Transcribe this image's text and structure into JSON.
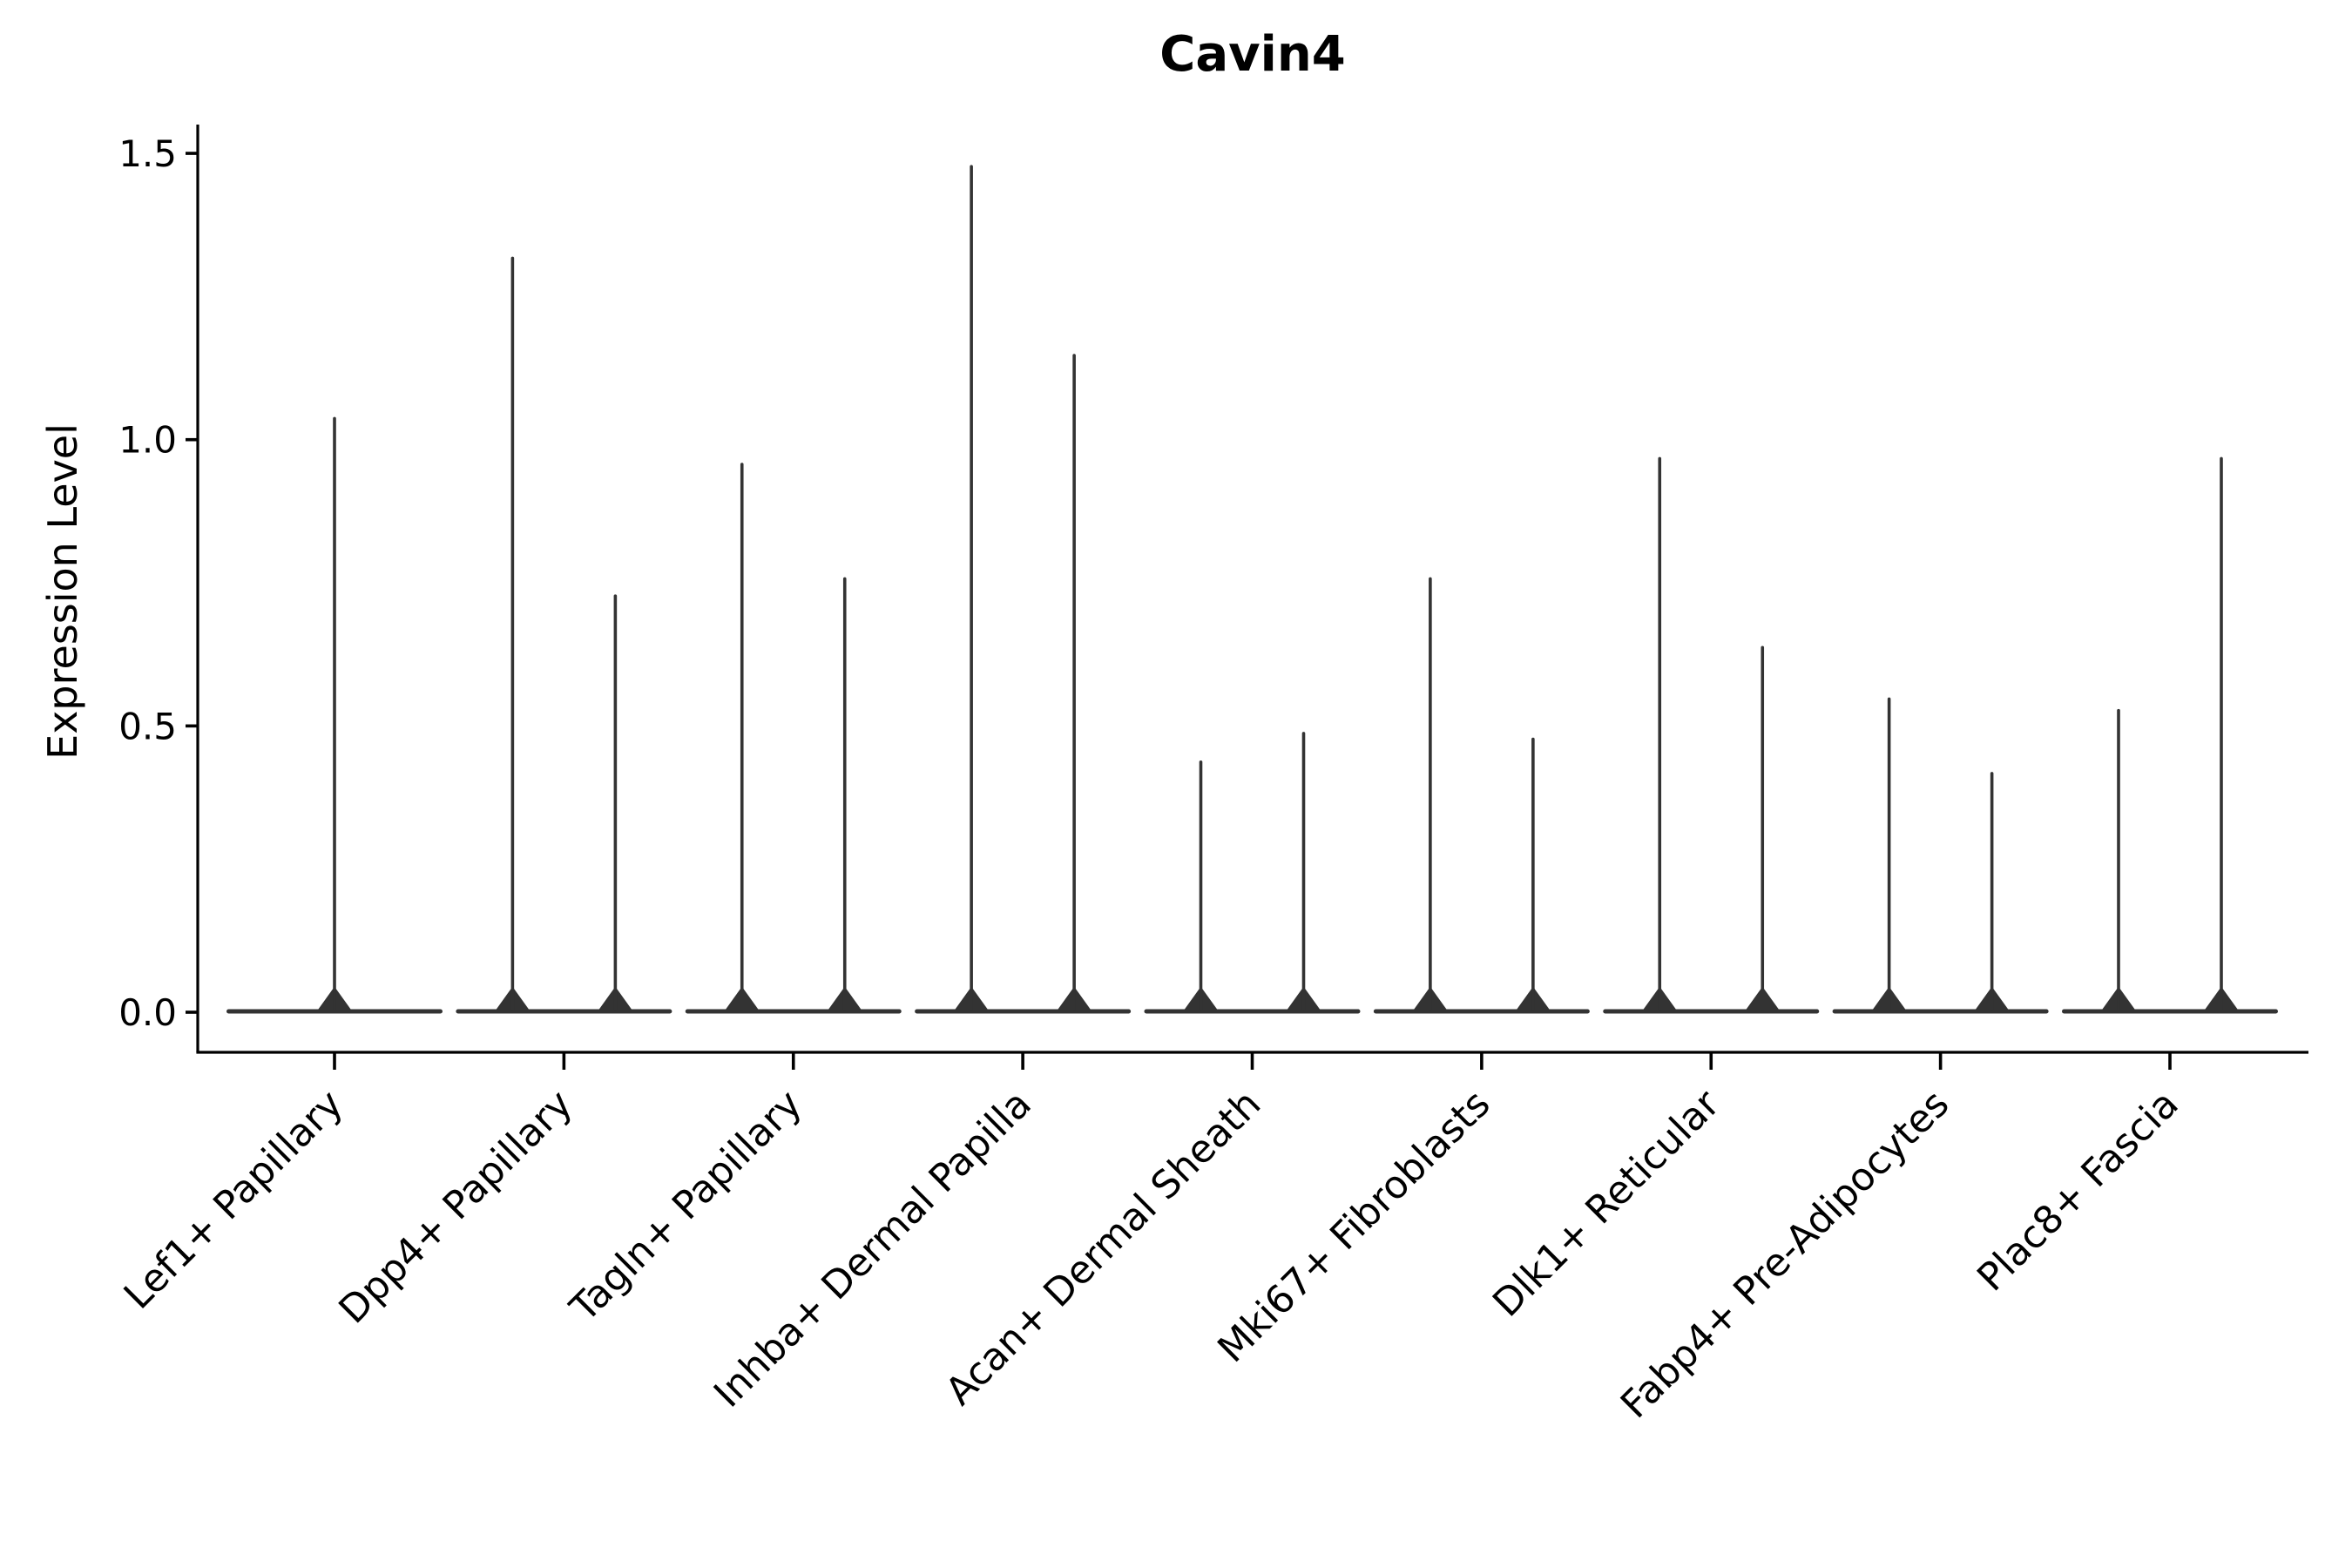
{
  "chart_data": {
    "type": "violin",
    "title": "Cavin4",
    "ylabel": "Expression Level",
    "xlabel": "",
    "grid": false,
    "legend": "none",
    "yticks": [
      {
        "label": "0.0",
        "value": 0.0
      },
      {
        "label": "0.5",
        "value": 0.5
      },
      {
        "label": "1.0",
        "value": 1.0
      },
      {
        "label": "1.5",
        "value": 1.5
      }
    ],
    "ylim": [
      -0.07,
      1.55
    ],
    "baseline_value": 0.0,
    "description": "Violin plot of Cavin4 expression; each violin collapses to a flat baseline at 0 with a thin spike up to the maximum expression value",
    "groups": [
      {
        "label": "Lef1+ Papillary",
        "violin_maxima": [
          1.04
        ]
      },
      {
        "label": "Dpp4+ Papillary",
        "violin_maxima": [
          1.32,
          0.73
        ]
      },
      {
        "label": "Tagln+ Papillary",
        "violin_maxima": [
          0.96,
          0.76
        ]
      },
      {
        "label": "Inhba+ Dermal Papilla",
        "violin_maxima": [
          1.48,
          1.15
        ]
      },
      {
        "label": "Acan+ Dermal Sheath",
        "violin_maxima": [
          0.44,
          0.49
        ]
      },
      {
        "label": "Mki67+ Fibroblasts",
        "violin_maxima": [
          0.76,
          0.48
        ]
      },
      {
        "label": "Dlk1+ Reticular",
        "violin_maxima": [
          0.97,
          0.64
        ]
      },
      {
        "label": "Fabp4+ Pre-Adipocytes",
        "violin_maxima": [
          0.55,
          0.42
        ]
      },
      {
        "label": "Plac8+ Fascia",
        "violin_maxima": [
          0.53,
          0.97
        ]
      }
    ],
    "colors": {
      "violin_line": "#333333",
      "spine": "#000000",
      "text": "#000000",
      "background": "#ffffff"
    }
  }
}
